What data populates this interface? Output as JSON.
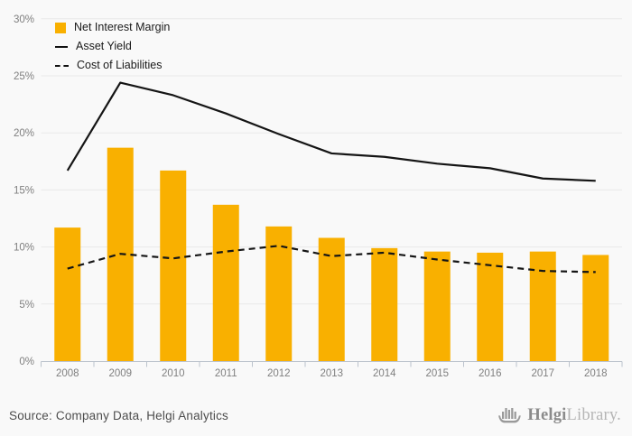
{
  "colors": {
    "background": "#f9f9f9",
    "bar": "#f9b000",
    "line": "#151515",
    "grid": "#e9e9e9",
    "axis": "#bcc3cd",
    "tick_label": "#7f7f7f",
    "legend_text": "#1a1a1a",
    "source_text": "#4d4d4d",
    "logo_gray": "#8b8b8b",
    "logo_light_gray": "#b5b5b5"
  },
  "chart_data": {
    "type": "bar+line combo",
    "categories": [
      "2008",
      "2009",
      "2010",
      "2011",
      "2012",
      "2013",
      "2014",
      "2015",
      "2016",
      "2017",
      "2018"
    ],
    "series": [
      {
        "name": "Net Interest Margin",
        "type": "bar",
        "style": "solid",
        "color": "#f9b000",
        "values": [
          11.7,
          18.7,
          16.7,
          13.7,
          11.8,
          10.8,
          9.9,
          9.6,
          9.5,
          9.6,
          9.3
        ]
      },
      {
        "name": "Asset Yield",
        "type": "line",
        "style": "solid",
        "color": "#151515",
        "values": [
          16.7,
          24.4,
          23.3,
          21.7,
          19.9,
          18.2,
          17.9,
          17.3,
          16.9,
          16.0,
          15.8
        ]
      },
      {
        "name": "Cost of Liabilities",
        "type": "line",
        "style": "dashed",
        "color": "#151515",
        "values": [
          8.1,
          9.4,
          9.0,
          9.6,
          10.1,
          9.2,
          9.5,
          8.9,
          8.4,
          7.9,
          7.8
        ]
      }
    ],
    "ylim": [
      0,
      30
    ],
    "ytick_step": 5,
    "ytick_labels": [
      "0%",
      "5%",
      "10%",
      "15%",
      "20%",
      "25%",
      "30%"
    ],
    "unit": "%",
    "grid": true,
    "legend_position": "top-left"
  },
  "footer": {
    "source": "Source: Company Data, Helgi Analytics",
    "logo": {
      "helgi": "Helgi",
      "library": "Library."
    }
  }
}
